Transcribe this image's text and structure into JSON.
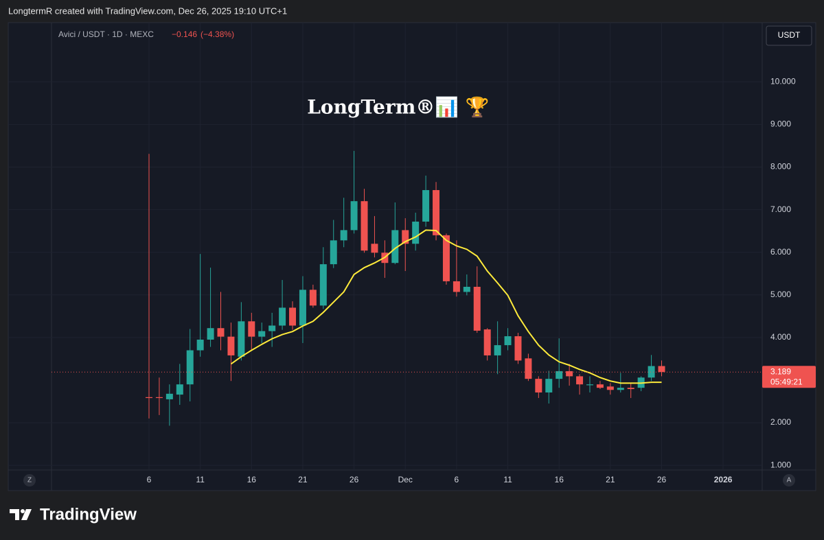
{
  "header": "LongtermR created with TradingView.com, Dec 26, 2025 19:10 UTC+1",
  "brand": "TradingView",
  "chart_data": {
    "type": "candlestick",
    "symbol": "Avici / USDT · 1D · MEXC",
    "change": {
      "value": -0.146,
      "label": "−0.146"
    },
    "change_pct": {
      "value": -4.38,
      "label": "(−4.38%)"
    },
    "watermark": "LongTerm®📊 🏆",
    "currency": "USDT",
    "scale_buttons": {
      "left": "Z",
      "right": "A"
    },
    "countdown": "05:49:21",
    "last_price": 3.189,
    "up_color": "#26a69a",
    "down_color": "#ef5350",
    "grid": true,
    "categories": [
      "6",
      null,
      null,
      null,
      null,
      "11",
      null,
      null,
      null,
      null,
      "16",
      null,
      null,
      null,
      null,
      "21",
      null,
      null,
      null,
      null,
      "26",
      null,
      null,
      null,
      null,
      "Dec",
      null,
      null,
      null,
      null,
      "6",
      null,
      null,
      null,
      null,
      "11",
      null,
      null,
      null,
      null,
      "16",
      null,
      null,
      null,
      null,
      "21",
      null,
      null,
      null,
      null,
      "26",
      null,
      null,
      null,
      null,
      null,
      "2026"
    ],
    "open": [
      2.6,
      2.6,
      2.55,
      2.66,
      2.9,
      3.7,
      3.95,
      4.22,
      4.02,
      3.55,
      4.38,
      4.02,
      4.15,
      4.28,
      4.7,
      4.28,
      5.12,
      4.75,
      5.72,
      6.28,
      6.52,
      7.2,
      6.2,
      5.99,
      5.75,
      6.52,
      6.2,
      6.72,
      7.46,
      6.4,
      5.32,
      5.07,
      5.19,
      4.19,
      3.58,
      3.82,
      4.03,
      3.51,
      3.03,
      2.71,
      3.03,
      3.21,
      3.09,
      2.88,
      2.9,
      2.85,
      2.77,
      2.82,
      2.82,
      3.06,
      3.33,
      null,
      null,
      null,
      null,
      null,
      null
    ],
    "high": [
      8.31,
      3.06,
      2.9,
      3.38,
      4.2,
      5.96,
      5.64,
      5.07,
      4.35,
      4.83,
      4.58,
      4.35,
      4.58,
      5.35,
      4.85,
      5.44,
      5.24,
      6.12,
      6.76,
      7.28,
      8.38,
      7.49,
      6.85,
      6.28,
      7.17,
      6.8,
      6.93,
      7.8,
      7.65,
      6.44,
      6.28,
      5.48,
      5.67,
      4.22,
      4.38,
      4.22,
      4.11,
      3.62,
      3.09,
      3.22,
      3.98,
      3.38,
      3.14,
      3.09,
      2.98,
      2.93,
      3.17,
      2.93,
      3.09,
      3.59,
      3.46,
      null,
      null,
      null,
      null,
      null,
      null
    ],
    "low": [
      2.1,
      2.18,
      1.93,
      2.42,
      2.5,
      3.55,
      3.78,
      3.7,
      2.98,
      3.46,
      3.7,
      3.87,
      3.78,
      4.18,
      4.18,
      3.87,
      4.7,
      4.67,
      5.63,
      6.12,
      6.44,
      5.99,
      5.88,
      5.4,
      5.72,
      5.56,
      6.04,
      6.6,
      6.28,
      5.24,
      4.96,
      4.99,
      4.11,
      3.46,
      3.14,
      3.7,
      3.38,
      2.98,
      2.58,
      2.45,
      2.82,
      2.87,
      2.66,
      2.71,
      2.79,
      2.66,
      2.71,
      2.58,
      2.74,
      2.98,
      3.09,
      null,
      null,
      null,
      null,
      null,
      null
    ],
    "close": [
      2.58,
      2.58,
      2.68,
      2.9,
      3.7,
      3.95,
      4.22,
      4.02,
      3.58,
      4.38,
      4.02,
      4.15,
      4.28,
      4.7,
      4.28,
      5.12,
      4.75,
      5.72,
      6.28,
      6.52,
      7.2,
      6.04,
      5.99,
      5.75,
      6.52,
      6.2,
      6.72,
      7.46,
      6.4,
      5.32,
      5.07,
      5.19,
      4.16,
      3.58,
      3.82,
      4.03,
      3.46,
      3.03,
      2.71,
      3.03,
      3.21,
      3.09,
      2.9,
      2.9,
      2.82,
      2.77,
      2.82,
      2.79,
      3.06,
      3.33,
      3.189,
      null,
      null,
      null,
      null,
      null,
      null
    ],
    "ma": {
      "color": "#ffeb3b",
      "values": [
        null,
        null,
        null,
        null,
        null,
        null,
        null,
        null,
        3.38,
        3.55,
        3.7,
        3.84,
        3.97,
        4.07,
        4.14,
        4.27,
        4.38,
        4.59,
        4.83,
        5.07,
        5.48,
        5.64,
        5.75,
        5.88,
        6.09,
        6.25,
        6.36,
        6.52,
        6.51,
        6.28,
        6.15,
        6.07,
        5.91,
        5.56,
        5.28,
        4.99,
        4.51,
        4.14,
        3.82,
        3.59,
        3.43,
        3.35,
        3.25,
        3.17,
        3.06,
        2.98,
        2.93,
        2.93,
        2.93,
        2.95,
        2.95,
        null,
        null,
        null,
        null,
        null,
        null
      ]
    },
    "ylim": [
      0.89,
      11.39
    ],
    "yticks": [
      {
        "value": 1,
        "label": "1.000"
      },
      {
        "value": 2,
        "label": "2.000"
      },
      {
        "value": 4,
        "label": "4.000"
      },
      {
        "value": 5,
        "label": "5.000"
      },
      {
        "value": 6,
        "label": "6.000"
      },
      {
        "value": 7,
        "label": "7.000"
      },
      {
        "value": 8,
        "label": "8.000"
      },
      {
        "value": 9,
        "label": "9.000"
      },
      {
        "value": 10,
        "label": "10.000"
      }
    ]
  }
}
